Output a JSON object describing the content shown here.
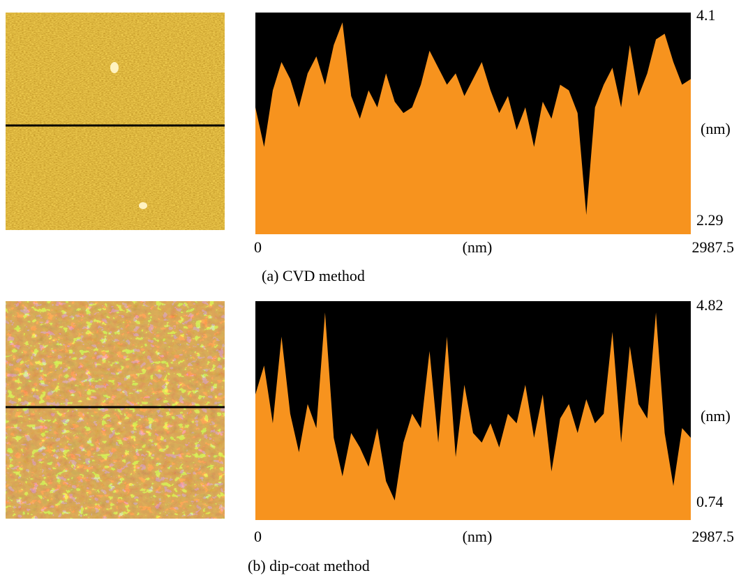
{
  "chart_data": [
    {
      "type": "area",
      "title": "(a) CVD method",
      "x_label": "(nm)",
      "y_label": "(nm)",
      "color": "#f7931e",
      "background": "#000000",
      "x": [
        0,
        59.75,
        119.5,
        179.25,
        239,
        298.75,
        358.5,
        418.25,
        478,
        537.75,
        597.5,
        657.25,
        717,
        776.75,
        836.5,
        896.25,
        956,
        1015.75,
        1075.5,
        1135.25,
        1195,
        1254.75,
        1314.5,
        1374.25,
        1434,
        1493.75,
        1553.5,
        1613.25,
        1673,
        1732.75,
        1792.5,
        1852.25,
        1912,
        1971.75,
        2031.5,
        2091.25,
        2151,
        2210.75,
        2270.5,
        2330.25,
        2390,
        2449.75,
        2509.5,
        2569.25,
        2629,
        2688.75,
        2748.5,
        2808.25,
        2868,
        2927.75,
        2987.5
      ],
      "values": [
        3.3,
        2.95,
        3.45,
        3.7,
        3.55,
        3.3,
        3.6,
        3.75,
        3.5,
        3.85,
        4.05,
        3.4,
        3.2,
        3.45,
        3.3,
        3.6,
        3.35,
        3.25,
        3.3,
        3.5,
        3.8,
        3.65,
        3.5,
        3.6,
        3.4,
        3.55,
        3.7,
        3.45,
        3.25,
        3.4,
        3.1,
        3.3,
        2.95,
        3.35,
        3.2,
        3.5,
        3.45,
        3.25,
        2.35,
        3.3,
        3.5,
        3.65,
        3.3,
        3.85,
        3.4,
        3.6,
        3.9,
        3.95,
        3.7,
        3.5,
        3.55
      ],
      "xlim": [
        0,
        2987.5
      ],
      "xticks": [
        0,
        2987.5
      ],
      "ylim": [
        2.29,
        4.1
      ],
      "yticks": [
        2.29,
        4.1
      ]
    },
    {
      "type": "area",
      "title": "(b) dip-coat method",
      "x_label": "(nm)",
      "y_label": "(nm)",
      "color": "#f7931e",
      "background": "#000000",
      "x": [
        0,
        59.75,
        119.5,
        179.25,
        239,
        298.75,
        358.5,
        418.25,
        478,
        537.75,
        597.5,
        657.25,
        717,
        776.75,
        836.5,
        896.25,
        956,
        1015.75,
        1075.5,
        1135.25,
        1195,
        1254.75,
        1314.5,
        1374.25,
        1434,
        1493.75,
        1553.5,
        1613.25,
        1673,
        1732.75,
        1792.5,
        1852.25,
        1912,
        1971.75,
        2031.5,
        2091.25,
        2151,
        2210.75,
        2270.5,
        2330.25,
        2390,
        2449.75,
        2509.5,
        2569.25,
        2629,
        2688.75,
        2748.5,
        2808.25,
        2868,
        2927.75,
        2987.5
      ],
      "values": [
        3.0,
        3.6,
        2.4,
        4.2,
        2.6,
        1.8,
        2.8,
        2.3,
        4.7,
        2.1,
        1.3,
        2.2,
        1.9,
        1.5,
        2.3,
        1.2,
        0.8,
        2.0,
        2.6,
        2.3,
        3.9,
        2.0,
        4.2,
        1.7,
        3.2,
        2.2,
        2.0,
        2.4,
        1.9,
        2.6,
        2.4,
        3.2,
        2.1,
        3.0,
        1.4,
        2.5,
        2.8,
        2.2,
        2.9,
        2.4,
        2.6,
        4.3,
        2.0,
        4.0,
        2.8,
        2.5,
        4.7,
        2.2,
        1.1,
        2.3,
        2.1
      ],
      "xlim": [
        0,
        2987.5
      ],
      "xticks": [
        0,
        2987.5
      ],
      "ylim": [
        0.74,
        4.82
      ],
      "yticks": [
        0.74,
        4.82
      ]
    }
  ]
}
